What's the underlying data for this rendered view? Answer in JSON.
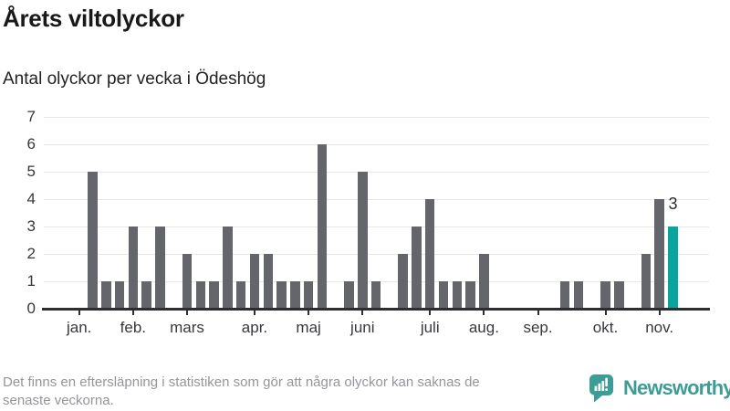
{
  "title": "Årets viltolyckor",
  "subtitle": "Antal olyckor per vecka i Ödeshög",
  "footer": {
    "lines": [
      "Det finns en eftersläpning i statistiken som gör att några olyckor kan saknas de",
      "senaste veckorna."
    ]
  },
  "logo": {
    "icon": "newsworthy-chart-bubble-icon",
    "text": "Newsworthy",
    "color": "#3e9c96"
  },
  "colors": {
    "bar": "#65656c",
    "highlight": "#0aa49e",
    "axis": "#2e2e31",
    "grid": "#e7e7e8",
    "tick_label": "#38383c",
    "title_text": "#191919",
    "footer_text": "#95959a"
  },
  "chart_data": {
    "type": "bar",
    "title": "Årets viltolyckor",
    "subtitle": "Antal olyckor per vecka i Ödeshög",
    "xlabel": "",
    "ylabel": "",
    "x_unit": "vecka (week of year)",
    "categories_weeks": [
      1,
      2,
      3,
      4,
      5,
      6,
      7,
      8,
      9,
      10,
      11,
      12,
      13,
      14,
      15,
      16,
      17,
      18,
      19,
      20,
      21,
      22,
      23,
      24,
      25,
      26,
      27,
      28,
      29,
      30,
      31,
      32,
      33,
      34,
      35,
      36,
      37,
      38,
      39,
      40,
      41,
      42,
      43,
      44,
      45
    ],
    "values": [
      0,
      5,
      1,
      1,
      3,
      1,
      3,
      0,
      2,
      1,
      1,
      3,
      1,
      2,
      2,
      1,
      1,
      1,
      6,
      0,
      1,
      5,
      1,
      0,
      2,
      3,
      4,
      1,
      1,
      1,
      2,
      0,
      0,
      0,
      0,
      0,
      1,
      1,
      0,
      1,
      1,
      0,
      2,
      4,
      3
    ],
    "highlight_week": 45,
    "annotation": {
      "week": 45,
      "label": "3"
    },
    "ylim": [
      0,
      7
    ],
    "yticks": [
      0,
      1,
      2,
      3,
      4,
      5,
      6,
      7
    ],
    "grid": "horizontal",
    "legend": "none",
    "month_ticks": [
      {
        "label": "jan.",
        "week": 1
      },
      {
        "label": "feb.",
        "week": 5
      },
      {
        "label": "mars",
        "week": 9
      },
      {
        "label": "apr.",
        "week": 14
      },
      {
        "label": "maj",
        "week": 18
      },
      {
        "label": "juni",
        "week": 22
      },
      {
        "label": "juli",
        "week": 27
      },
      {
        "label": "aug.",
        "week": 31
      },
      {
        "label": "sep.",
        "week": 35
      },
      {
        "label": "okt.",
        "week": 40
      },
      {
        "label": "nov.",
        "week": 44
      }
    ]
  }
}
